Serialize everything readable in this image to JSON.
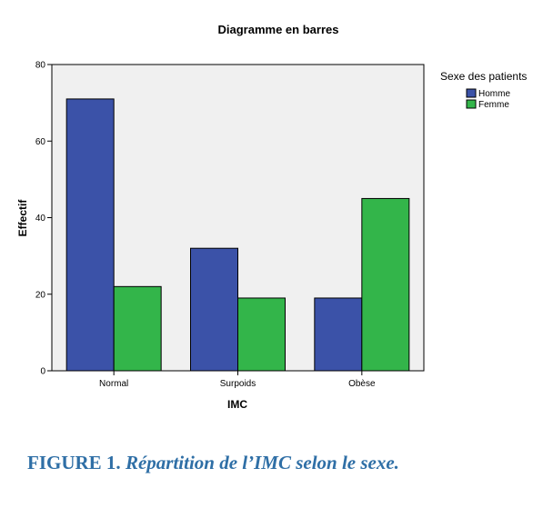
{
  "chart_data": {
    "type": "bar",
    "title": "Diagramme en barres",
    "xlabel": "IMC",
    "ylabel": "Effectif",
    "categories": [
      "Normal",
      "Surpoids",
      "Obèse"
    ],
    "series": [
      {
        "name": "Homme",
        "values": [
          71,
          32,
          19
        ],
        "color": "#3b52a8"
      },
      {
        "name": "Femme",
        "values": [
          22,
          19,
          45
        ],
        "color": "#33b54a"
      }
    ],
    "ylim": [
      0,
      80
    ],
    "yticks": [
      0,
      20,
      40,
      60,
      80
    ],
    "legend_title": "Sexe des patients",
    "legend_position": "right",
    "grid": false,
    "plot_background": "#f0f0f0"
  },
  "caption": {
    "label": "FIGURE 1.",
    "text": "Répartition de l’IMC selon le sexe."
  }
}
